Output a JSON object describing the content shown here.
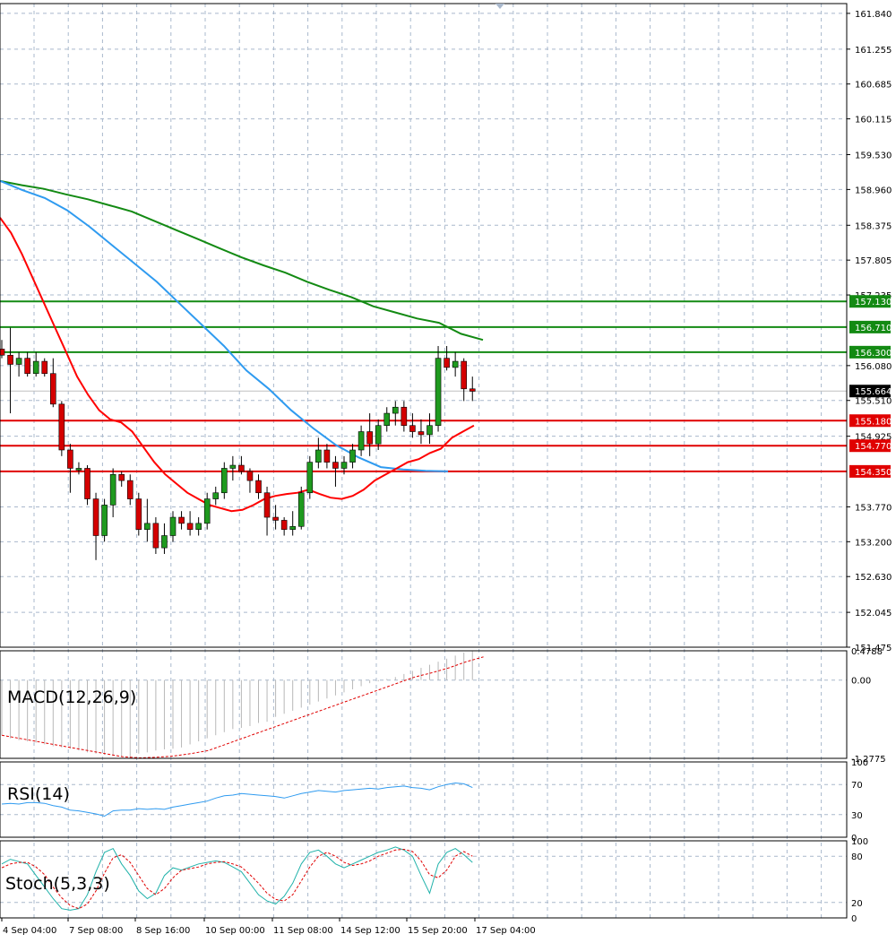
{
  "colors": {
    "background": "#ffffff",
    "grid": "#a9b8cc",
    "bull": "#1f9a1f",
    "bear": "#d40000",
    "ma_fast": "#ff0000",
    "ma_mid": "#2f9bf0",
    "ma_slow": "#138a13",
    "support": "#e00000",
    "resistance": "#138a13",
    "macd_signal": "#e00000",
    "macd_hist": "#b8b8b8",
    "rsi": "#2f9bf0",
    "stoch_main": "#20b2aa",
    "stoch_signal": "#e00000",
    "current_price_bg": "#000000"
  },
  "chart_data": {
    "type": "candlestick",
    "price_axis": {
      "ylim": [
        151.475,
        162.0
      ],
      "ticks": [
        "161.840",
        "161.255",
        "160.685",
        "160.115",
        "159.530",
        "158.960",
        "158.375",
        "157.805",
        "157.235",
        "156.080",
        "155.510",
        "154.925",
        "153.770",
        "153.200",
        "152.630",
        "152.045",
        "151.475"
      ]
    },
    "time_axis": {
      "labels": [
        "4 Sep 04:00",
        "7 Sep 08:00",
        "8 Sep 16:00",
        "10 Sep 00:00",
        "11 Sep 08:00",
        "14 Sep 12:00",
        "15 Sep 20:00",
        "17 Sep 04:00"
      ]
    },
    "current_price": "155.664",
    "resistance_levels": [
      "157.130",
      "156.710",
      "156.300"
    ],
    "support_levels": [
      "155.180",
      "154.770",
      "154.350"
    ],
    "candles": [
      [
        156.35,
        156.5,
        156.2,
        156.25
      ],
      [
        156.25,
        156.7,
        155.3,
        156.1
      ],
      [
        156.1,
        156.3,
        155.9,
        156.2
      ],
      [
        156.2,
        156.3,
        155.9,
        155.95
      ],
      [
        155.95,
        156.3,
        155.9,
        156.15
      ],
      [
        156.15,
        156.2,
        155.9,
        155.95
      ],
      [
        155.95,
        156.2,
        155.4,
        155.45
      ],
      [
        155.45,
        155.5,
        154.6,
        154.7
      ],
      [
        154.7,
        154.8,
        154.0,
        154.4
      ],
      [
        154.4,
        154.5,
        154.3,
        154.4
      ],
      [
        154.4,
        154.45,
        153.8,
        153.9
      ],
      [
        153.9,
        154.0,
        152.9,
        153.3
      ],
      [
        153.3,
        153.9,
        153.2,
        153.8
      ],
      [
        153.8,
        154.4,
        153.6,
        154.3
      ],
      [
        154.3,
        154.35,
        154.1,
        154.2
      ],
      [
        154.2,
        154.3,
        153.8,
        153.9
      ],
      [
        153.9,
        154.0,
        153.3,
        153.4
      ],
      [
        153.4,
        153.9,
        153.2,
        153.5
      ],
      [
        153.5,
        153.6,
        153.0,
        153.1
      ],
      [
        153.1,
        153.5,
        153.0,
        153.3
      ],
      [
        153.3,
        153.7,
        153.2,
        153.6
      ],
      [
        153.6,
        153.7,
        153.4,
        153.5
      ],
      [
        153.5,
        153.7,
        153.3,
        153.4
      ],
      [
        153.4,
        153.6,
        153.3,
        153.5
      ],
      [
        153.5,
        154.0,
        153.4,
        153.9
      ],
      [
        153.9,
        154.1,
        153.8,
        154.0
      ],
      [
        154.0,
        154.5,
        153.9,
        154.4
      ],
      [
        154.4,
        154.6,
        154.2,
        154.45
      ],
      [
        154.45,
        154.6,
        154.3,
        154.35
      ],
      [
        154.35,
        154.4,
        154.0,
        154.2
      ],
      [
        154.2,
        154.3,
        153.9,
        154.0
      ],
      [
        154.0,
        154.1,
        153.3,
        153.6
      ],
      [
        153.6,
        153.8,
        153.4,
        153.55
      ],
      [
        153.55,
        153.6,
        153.3,
        153.4
      ],
      [
        153.4,
        153.7,
        153.3,
        153.45
      ],
      [
        153.45,
        154.1,
        153.4,
        154.0
      ],
      [
        154.0,
        154.6,
        153.9,
        154.5
      ],
      [
        154.5,
        154.9,
        154.4,
        154.7
      ],
      [
        154.7,
        154.8,
        154.4,
        154.5
      ],
      [
        154.5,
        154.6,
        154.1,
        154.4
      ],
      [
        154.4,
        154.6,
        154.3,
        154.5
      ],
      [
        154.5,
        154.8,
        154.4,
        154.7
      ],
      [
        154.7,
        155.1,
        154.6,
        155.0
      ],
      [
        155.0,
        155.3,
        154.6,
        154.8
      ],
      [
        154.8,
        155.2,
        154.7,
        155.1
      ],
      [
        155.1,
        155.4,
        155.0,
        155.3
      ],
      [
        155.3,
        155.5,
        155.1,
        155.4
      ],
      [
        155.4,
        155.5,
        155.0,
        155.1
      ],
      [
        155.1,
        155.3,
        154.9,
        155.0
      ],
      [
        155.0,
        155.2,
        154.8,
        154.95
      ],
      [
        154.95,
        155.3,
        154.8,
        155.1
      ],
      [
        155.1,
        156.4,
        155.0,
        156.2
      ],
      [
        156.2,
        156.4,
        156.0,
        156.05
      ],
      [
        156.05,
        156.3,
        155.9,
        156.15
      ],
      [
        156.15,
        156.2,
        155.5,
        155.7
      ],
      [
        155.7,
        155.9,
        155.5,
        155.66
      ]
    ],
    "ma_fast": [
      158.5,
      158.25,
      157.9,
      157.5,
      157.1,
      156.7,
      156.3,
      155.9,
      155.6,
      155.35,
      155.2,
      155.15,
      155.0,
      154.75,
      154.5,
      154.3,
      154.15,
      154.0,
      153.9,
      153.8,
      153.75,
      153.7,
      153.72,
      153.8,
      153.9,
      153.95,
      153.98,
      154.0,
      154.05,
      153.98,
      153.92,
      153.9,
      153.95,
      154.05,
      154.2,
      154.3,
      154.4,
      154.5,
      154.55,
      154.65,
      154.72,
      154.9,
      155.0,
      155.1
    ],
    "ma_mid": [
      159.1,
      158.95,
      158.82,
      158.62,
      158.35,
      158.05,
      157.75,
      157.45,
      157.1,
      156.75,
      156.4,
      156.0,
      155.7,
      155.35,
      155.05,
      154.78,
      154.58,
      154.42,
      154.38,
      154.36,
      154.35
    ],
    "ma_slow": [
      159.1,
      159.03,
      158.97,
      158.88,
      158.8,
      158.7,
      158.6,
      158.45,
      158.3,
      158.15,
      158.0,
      157.85,
      157.72,
      157.6,
      157.45,
      157.32,
      157.2,
      157.05,
      156.95,
      156.85,
      156.78,
      156.6,
      156.5
    ],
    "macd_axis": {
      "ticks": [
        "0.4788",
        "0.00",
        "-1.2775"
      ]
    },
    "macd_hist": [
      -0.9,
      -0.95,
      -0.98,
      -1.0,
      -1.02,
      -1.05,
      -1.08,
      -1.1,
      -1.12,
      -1.15,
      -1.18,
      -1.2,
      -1.22,
      -1.23,
      -1.25,
      -1.27,
      -1.2,
      -1.18,
      -1.15,
      -1.13,
      -1.12,
      -1.1,
      -1.05,
      -1.0,
      -0.95,
      -0.9,
      -0.85,
      -0.8,
      -0.78,
      -0.75,
      -0.7,
      -0.68,
      -0.6,
      -0.55,
      -0.5,
      -0.45,
      -0.4,
      -0.35,
      -0.3,
      -0.25,
      -0.2,
      -0.15,
      -0.1,
      -0.05,
      -0.02,
      0.02,
      0.05,
      0.1,
      0.15,
      0.2,
      0.25,
      0.3,
      0.35,
      0.4,
      0.45,
      0.47
    ],
    "macd_signal": [
      -0.9,
      -0.95,
      -1.0,
      -1.05,
      -1.1,
      -1.15,
      -1.2,
      -1.25,
      -1.27,
      -1.26,
      -1.24,
      -1.2,
      -1.15,
      -1.05,
      -0.95,
      -0.85,
      -0.75,
      -0.65,
      -0.55,
      -0.45,
      -0.35,
      -0.25,
      -0.15,
      -0.05,
      0.05,
      0.12,
      0.2,
      0.3,
      0.38
    ],
    "rsi_axis": {
      "ticks": [
        "100",
        "70",
        "30",
        "0"
      ]
    },
    "rsi": [
      44,
      45,
      44,
      46,
      46,
      45,
      42,
      40,
      36,
      35,
      33,
      31,
      28,
      35,
      36,
      36,
      38,
      37,
      38,
      37,
      40,
      42,
      44,
      46,
      48,
      52,
      55,
      56,
      58,
      57,
      56,
      55,
      54,
      52,
      55,
      58,
      60,
      62,
      61,
      60,
      62,
      63,
      64,
      65,
      64,
      66,
      67,
      68,
      66,
      65,
      63,
      67,
      70,
      72,
      71,
      66
    ],
    "stoch_axis": {
      "ticks": [
        "100",
        "80",
        "20",
        "0"
      ]
    },
    "stoch_main": [
      70,
      76,
      73,
      70,
      55,
      40,
      25,
      12,
      10,
      12,
      30,
      60,
      85,
      90,
      70,
      55,
      35,
      25,
      32,
      55,
      65,
      62,
      66,
      70,
      72,
      74,
      72,
      66,
      60,
      45,
      30,
      22,
      18,
      28,
      45,
      70,
      85,
      88,
      80,
      70,
      65,
      70,
      75,
      80,
      85,
      88,
      92,
      88,
      80,
      55,
      32,
      70,
      85,
      90,
      82,
      72
    ],
    "stoch_signal": [
      65,
      70,
      72,
      72,
      66,
      56,
      40,
      26,
      16,
      12,
      18,
      35,
      58,
      78,
      82,
      72,
      55,
      38,
      30,
      38,
      52,
      62,
      64,
      66,
      70,
      72,
      73,
      70,
      66,
      56,
      45,
      32,
      24,
      22,
      30,
      48,
      66,
      80,
      85,
      80,
      72,
      68,
      70,
      74,
      80,
      84,
      88,
      89,
      86,
      74,
      56,
      52,
      62,
      80,
      86,
      80
    ]
  },
  "indicators": {
    "macd_label": "MACD(12,26,9)",
    "rsi_label": "RSI(14)",
    "stoch_label": "Stoch(5,3,3)"
  }
}
